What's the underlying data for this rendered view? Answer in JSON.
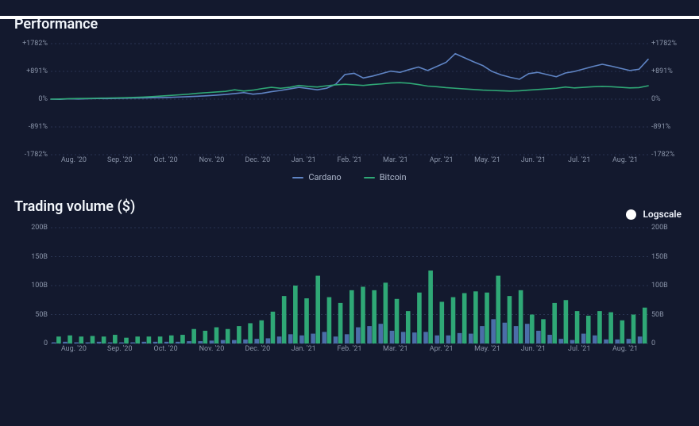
{
  "colors": {
    "background": "#13192e",
    "grid": "#2a3452",
    "axis_text": "#8993a8",
    "title_text": "#f2f6fb",
    "legend_text": "#aeb8cc"
  },
  "performance": {
    "title": "Performance",
    "title_fontsize": 18,
    "plot_left_pad": 46,
    "plot_right_pad": 46,
    "plot_bottom_pad": 16,
    "plot_top_pad": 2,
    "ylim": [
      -1782,
      1782
    ],
    "ytick_step": 891,
    "ylabels": [
      "+1782%",
      "+891%",
      "0%",
      "-891%",
      "-1782%"
    ],
    "xlabels": [
      "Aug. '20",
      "Sep. '20",
      "Oct. '20",
      "Nov. '20",
      "Dec. '20",
      "Jan. '21",
      "Feb. '21",
      "Mar. '21",
      "Apr. '21",
      "May. '21",
      "Jun. '21",
      "Jul. '21",
      "Aug. '21"
    ],
    "label_fontsize": 9,
    "line_width": 1.6,
    "series": [
      {
        "name": "Cardano",
        "color": "#5f84c4",
        "values": [
          0,
          -5,
          10,
          5,
          15,
          20,
          18,
          25,
          30,
          35,
          40,
          45,
          50,
          60,
          70,
          80,
          95,
          110,
          130,
          150,
          180,
          210,
          160,
          190,
          240,
          280,
          330,
          380,
          340,
          300,
          350,
          480,
          790,
          830,
          680,
          740,
          820,
          900,
          860,
          950,
          1030,
          920,
          1050,
          1180,
          1460,
          1330,
          1200,
          1080,
          890,
          780,
          700,
          640,
          820,
          860,
          790,
          720,
          840,
          890,
          970,
          1050,
          1120,
          1060,
          990,
          920,
          960,
          1280
        ]
      },
      {
        "name": "Bitcoin",
        "color": "#2fa876",
        "values": [
          0,
          5,
          15,
          20,
          25,
          30,
          35,
          40,
          45,
          55,
          65,
          80,
          100,
          120,
          140,
          160,
          190,
          210,
          230,
          250,
          300,
          260,
          290,
          340,
          380,
          350,
          380,
          440,
          410,
          390,
          430,
          460,
          480,
          460,
          440,
          470,
          490,
          520,
          530,
          510,
          470,
          420,
          400,
          370,
          350,
          330,
          310,
          290,
          280,
          270,
          260,
          270,
          290,
          310,
          330,
          350,
          390,
          360,
          380,
          400,
          410,
          400,
          380,
          360,
          370,
          430
        ]
      }
    ],
    "legend": {
      "items": [
        {
          "label": "Cardano",
          "color": "#5f84c4"
        },
        {
          "label": "Bitcoin",
          "color": "#2fa876"
        }
      ],
      "fontsize": 11
    }
  },
  "volume": {
    "title": "Trading volume ($)",
    "title_fontsize": 18,
    "plot_left_pad": 46,
    "plot_right_pad": 46,
    "plot_bottom_pad": 16,
    "plot_top_pad": 4,
    "ylim": [
      0,
      200
    ],
    "ytick_step": 50,
    "ylabels": [
      "200B",
      "150B",
      "100B",
      "50B",
      "0"
    ],
    "xlabels": [
      "Aug. '20",
      "Sep. '20",
      "Oct. '20",
      "Nov. '20",
      "Dec. '20",
      "Jan. '21",
      "Feb. '21",
      "Mar. '21",
      "Apr. '21",
      "May. '21",
      "Jun. '21",
      "Jul. '21",
      "Aug. '21"
    ],
    "label_fontsize": 9,
    "bar_gap": 2,
    "series": [
      {
        "name": "Cardano",
        "color": "#4b6ea8",
        "values": [
          2,
          3,
          2,
          2,
          3,
          2,
          2,
          2,
          3,
          3,
          3,
          3,
          4,
          4,
          5,
          6,
          6,
          7,
          8,
          9,
          12,
          16,
          14,
          17,
          20,
          12,
          16,
          28,
          30,
          34,
          22,
          20,
          19,
          20,
          14,
          14,
          18,
          17,
          30,
          42,
          36,
          30,
          34,
          22,
          15,
          8,
          6,
          17,
          14,
          7,
          7,
          8,
          12
        ]
      },
      {
        "name": "Bitcoin",
        "color": "#2fa876",
        "values": [
          12,
          14,
          12,
          13,
          12,
          15,
          10,
          12,
          12,
          12,
          14,
          15,
          25,
          22,
          28,
          25,
          30,
          35,
          40,
          55,
          82,
          100,
          78,
          117,
          80,
          70,
          92,
          98,
          92,
          105,
          77,
          56,
          88,
          126,
          72,
          80,
          87,
          90,
          88,
          117,
          82,
          92,
          50,
          42,
          70,
          75,
          56,
          48,
          56,
          54,
          40,
          50,
          62
        ]
      }
    ],
    "logscale": {
      "label": "Logscale",
      "on": false,
      "fontsize": 12,
      "dot_color": "#ffffff"
    }
  }
}
